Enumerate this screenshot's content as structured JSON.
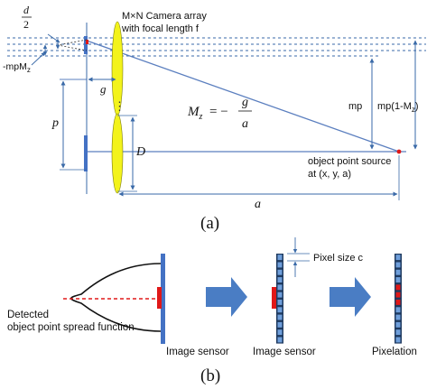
{
  "part_a": {
    "caption": "(a)",
    "d_num": "d",
    "d_den": "2",
    "camera_array_line1": "M×N Camera array",
    "camera_array_line2": "with focal length f",
    "mpmz": "-mpM",
    "mpmz_sub": "z",
    "g": "g",
    "p": "p",
    "D": "D",
    "dots": "⋮",
    "mz_lhs": "M",
    "mz_sub": "z",
    "mz_eq": "= −",
    "mz_num": "g",
    "mz_den": "a",
    "mp": "mp",
    "mp1mz": "mp(1-M",
    "mp1mz_sub": "z",
    "mp1mz_close": ")",
    "source_line1": "object point source",
    "source_line2": "at (x, y, a)",
    "a": "a"
  },
  "part_b": {
    "caption": "(b)",
    "psf_line1": "Detected",
    "psf_line2": "object point spread function",
    "sensor1": "Image sensor",
    "sensor2": "Image sensor",
    "pixel_size": "Pixel size c",
    "pixelation": "Pixelation"
  },
  "colors": {
    "sensor_blue": "#4472c4",
    "lens_yellow": "#f3f31b",
    "psf_red": "#e01818",
    "ray_blue": "#5b7fbf",
    "arrow_blue": "#4a7dc4",
    "pixel_blue": "#6f9fdb",
    "pixel_dark": "#1f3a5f"
  }
}
